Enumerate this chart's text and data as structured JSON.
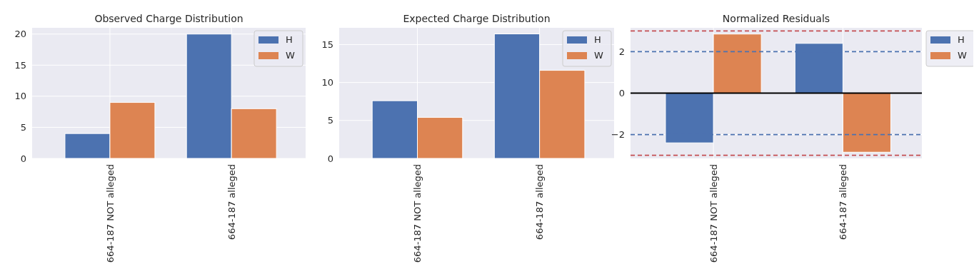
{
  "chart_data": [
    {
      "type": "bar",
      "title": "Observed Charge Distribution",
      "categories": [
        "664-187 NOT alleged",
        "664-187 alleged"
      ],
      "series": [
        {
          "name": "H",
          "color": "#4c72b0",
          "values": [
            4,
            20
          ]
        },
        {
          "name": "W",
          "color": "#dd8452",
          "values": [
            9,
            8
          ]
        }
      ],
      "ylim": [
        0,
        21
      ],
      "yticks": [
        0,
        5,
        10,
        15,
        20
      ],
      "grid": true,
      "legend": "top right"
    },
    {
      "type": "bar",
      "title": "Expected Charge Distribution",
      "categories": [
        "664-187 NOT alleged",
        "664-187 alleged"
      ],
      "series": [
        {
          "name": "H",
          "color": "#4c72b0",
          "values": [
            7.6,
            16.4
          ]
        },
        {
          "name": "W",
          "color": "#dd8452",
          "values": [
            5.4,
            11.6
          ]
        }
      ],
      "ylim": [
        0,
        17.2
      ],
      "yticks": [
        0,
        5,
        10,
        15
      ],
      "grid": true,
      "legend": "top right"
    },
    {
      "type": "bar",
      "title": "Normalized Residuals",
      "categories": [
        "664-187 NOT alleged",
        "664-187 alleged"
      ],
      "series": [
        {
          "name": "H",
          "color": "#4c72b0",
          "values": [
            -2.4,
            2.4
          ]
        },
        {
          "name": "W",
          "color": "#dd8452",
          "values": [
            2.85,
            -2.85
          ]
        }
      ],
      "ylim": [
        -3.15,
        3.15
      ],
      "yticks": [
        -2,
        0,
        2
      ],
      "grid": true,
      "legend": "right",
      "ref_lines": [
        {
          "axis": "y",
          "value": 0,
          "color": "#000000",
          "line_style": "solid"
        },
        {
          "axis": "y",
          "value": 2,
          "color": "#4c72b0",
          "line_style": "dashed"
        },
        {
          "axis": "y",
          "value": -2,
          "color": "#4c72b0",
          "line_style": "dashed"
        },
        {
          "axis": "y",
          "value": 3,
          "color": "#c44e52",
          "line_style": "dashed"
        },
        {
          "axis": "y",
          "value": -3,
          "color": "#c44e52",
          "line_style": "dashed"
        }
      ]
    }
  ]
}
